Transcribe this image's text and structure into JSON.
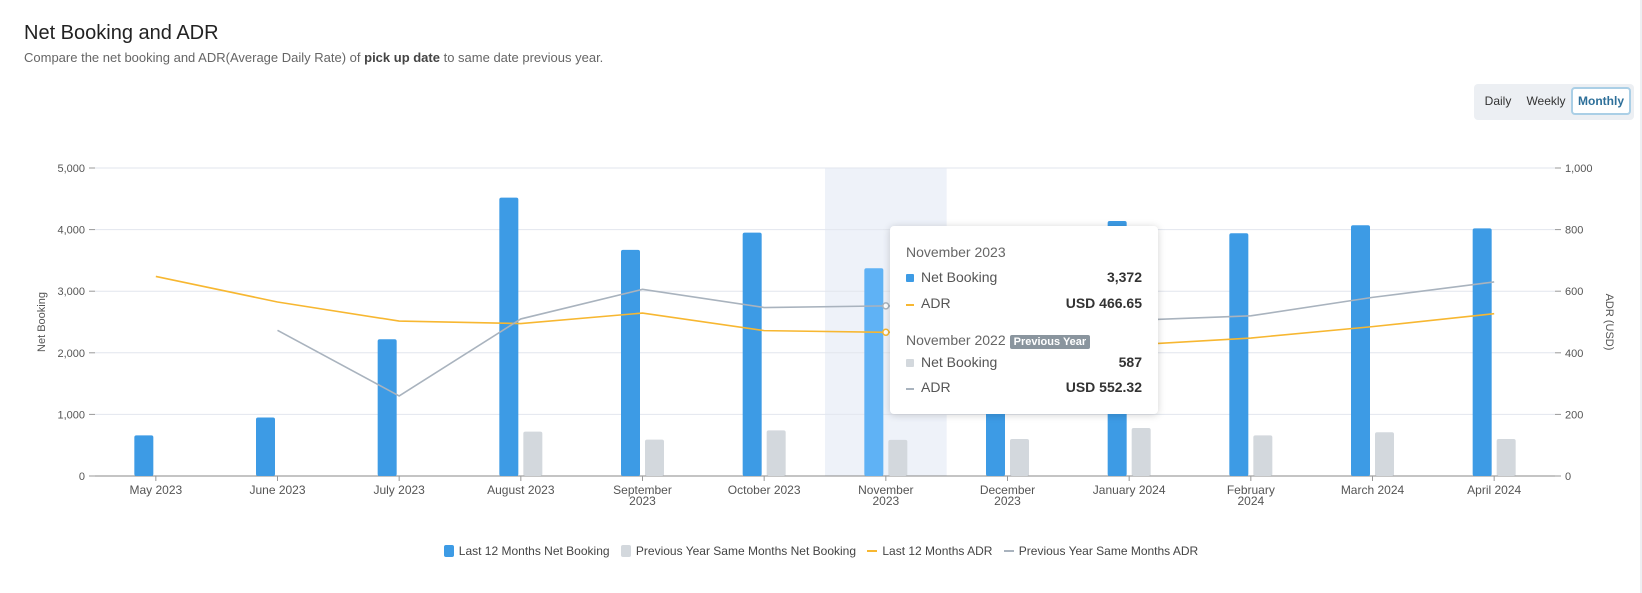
{
  "header": {
    "title": "Net Booking and ADR",
    "subtitle_before": "Compare the net booking and ADR(Average Daily Rate) of ",
    "subtitle_bold": "pick up date",
    "subtitle_after": " to same date previous year."
  },
  "toggle": {
    "daily": "Daily",
    "weekly": "Weekly",
    "monthly": "Monthly",
    "selected": "Monthly"
  },
  "tooltip": {
    "current_title": "November 2023",
    "current_net_label": "Net Booking",
    "current_net_value": "3,372",
    "current_adr_label": "ADR",
    "current_adr_value": "USD 466.65",
    "previous_title": "November 2022",
    "previous_badge": "Previous Year",
    "previous_net_label": "Net Booking",
    "previous_net_value": "587",
    "previous_adr_label": "ADR",
    "previous_adr_value": "USD 552.32"
  },
  "chart_data": {
    "type": "bar",
    "categories": [
      [
        "May 2023"
      ],
      [
        "June 2023"
      ],
      [
        "July 2023"
      ],
      [
        "August 2023"
      ],
      [
        "September",
        "2023"
      ],
      [
        "October 2023"
      ],
      [
        "November",
        "2023"
      ],
      [
        "December",
        "2023"
      ],
      [
        "January 2024"
      ],
      [
        "February",
        "2024"
      ],
      [
        "March 2024"
      ],
      [
        "April 2024"
      ]
    ],
    "highlighted_index": 6,
    "ylabel": "Net Booking",
    "y2label": "ADR (USD)",
    "ylim": [
      0,
      5000
    ],
    "y2lim": [
      0,
      1000
    ],
    "yticks": [
      "0",
      "1,000",
      "2,000",
      "3,000",
      "4,000",
      "5,000"
    ],
    "y2ticks": [
      "0",
      "200",
      "400",
      "600",
      "800",
      "1,000"
    ],
    "grid": true,
    "legend_position": "bottom",
    "series": [
      {
        "name": "Last 12 Months Net Booking",
        "kind": "bar",
        "axis": "left",
        "color": "#3d9be5",
        "values": [
          660,
          950,
          2220,
          4520,
          3670,
          3950,
          3372,
          3250,
          4140,
          3940,
          4070,
          4020
        ]
      },
      {
        "name": "Previous Year Same Months Net Booking",
        "kind": "bar",
        "axis": "left",
        "color": "#d3d8dd",
        "values": [
          0,
          0,
          0,
          720,
          590,
          740,
          587,
          600,
          780,
          660,
          710,
          600
        ]
      },
      {
        "name": "Last 12 Months ADR",
        "kind": "line",
        "axis": "right",
        "color": "#f7b731",
        "values": [
          648,
          565,
          503,
          495,
          529,
          472,
          466.65,
          470,
          425,
          448,
          485,
          527
        ]
      },
      {
        "name": "Previous Year Same Months ADR",
        "kind": "line",
        "axis": "right",
        "color": "#a9b3be",
        "values": [
          null,
          473,
          260,
          510,
          606,
          547,
          552.32,
          545,
          505,
          520,
          580,
          630
        ]
      }
    ]
  }
}
